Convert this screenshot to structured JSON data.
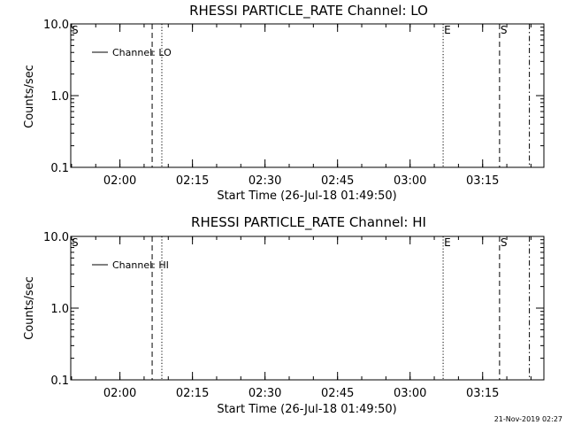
{
  "chart_data": [
    {
      "type": "line",
      "title": "RHESSI PARTICLE_RATE Channel: LO",
      "xlabel": "Start Time (26-Jul-18 01:49:50)",
      "ylabel": "Counts/sec",
      "y_scale": "log",
      "ylim": [
        0.1,
        10.0
      ],
      "y_ticks": [
        "0.1",
        "1.0",
        "10.0"
      ],
      "x_ticks": [
        "02:00",
        "02:15",
        "02:30",
        "02:45",
        "03:00",
        "03:15"
      ],
      "legend": {
        "placement": "top-left",
        "entries": [
          "Channel: LO"
        ]
      },
      "series": [
        {
          "name": "Channel: LO",
          "values": []
        }
      ],
      "markers": [
        {
          "label": "S",
          "time": "01:49:50",
          "style": "solid"
        },
        {
          "label": "",
          "time": "02:06:40",
          "style": "dashed"
        },
        {
          "label": "",
          "time": "02:08:40",
          "style": "dotted"
        },
        {
          "label": "E",
          "time": "03:06:50",
          "style": "dotted"
        },
        {
          "label": "S",
          "time": "03:18:30",
          "style": "dashed"
        },
        {
          "label": "",
          "time": "03:24:40",
          "style": "dashdot"
        }
      ]
    },
    {
      "type": "line",
      "title": "RHESSI PARTICLE_RATE Channel: HI",
      "xlabel": "Start Time (26-Jul-18 01:49:50)",
      "ylabel": "Counts/sec",
      "y_scale": "log",
      "ylim": [
        0.1,
        10.0
      ],
      "y_ticks": [
        "0.1",
        "1.0",
        "10.0"
      ],
      "x_ticks": [
        "02:00",
        "02:15",
        "02:30",
        "02:45",
        "03:00",
        "03:15"
      ],
      "legend": {
        "placement": "top-left",
        "entries": [
          "Channel: HI"
        ]
      },
      "series": [
        {
          "name": "Channel: HI",
          "values": []
        }
      ],
      "markers": [
        {
          "label": "S",
          "time": "01:49:50",
          "style": "solid"
        },
        {
          "label": "",
          "time": "02:06:40",
          "style": "dashed"
        },
        {
          "label": "",
          "time": "02:08:40",
          "style": "dotted"
        },
        {
          "label": "E",
          "time": "03:06:50",
          "style": "dotted"
        },
        {
          "label": "S",
          "time": "03:18:30",
          "style": "dashed"
        },
        {
          "label": "",
          "time": "03:24:40",
          "style": "dashdot"
        }
      ]
    }
  ],
  "footer": {
    "timestamp": "21-Nov-2019 02:27"
  },
  "colors": {
    "background": "#ffffff",
    "ink": "#000000"
  }
}
